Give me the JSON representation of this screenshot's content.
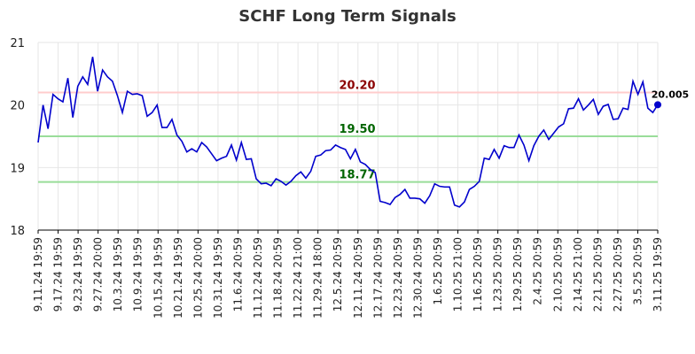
{
  "chart_data": {
    "type": "line",
    "title": "SCHF Long Term Signals",
    "xlabel": "",
    "ylabel": "",
    "ylim": [
      18,
      21
    ],
    "yticks": [
      "18",
      "19",
      "20",
      "21"
    ],
    "grid": true,
    "x_tick_labels": [
      "9.11.24 19:59",
      "9.17.24 19:59",
      "9.23.24 19:59",
      "9.27.24 20:00",
      "10.3.24 19:59",
      "10.9.24 19:59",
      "10.15.24 19:59",
      "10.21.24 19:59",
      "10.25.24 20:00",
      "10.31.24 19:59",
      "11.6.24 20:59",
      "11.12.24 20:59",
      "11.18.24 20:59",
      "11.22.24 21:00",
      "11.29.24 18:00",
      "12.5.24 20:59",
      "12.11.24 20:59",
      "12.17.24 20:59",
      "12.23.24 20:59",
      "12.30.24 20:59",
      "1.6.25 20:59",
      "1.10.25 21:00",
      "1.16.25 20:59",
      "1.23.25 20:59",
      "1.29.25 20:59",
      "2.4.25 20:59",
      "2.10.25 20:59",
      "2.14.25 21:00",
      "2.21.25 20:59",
      "2.27.25 20:59",
      "3.5.25 20:59",
      "3.11.25 19:59"
    ],
    "series": [
      {
        "color": "#0000cc",
        "values": [
          19.4,
          20.0,
          19.62,
          20.17,
          20.1,
          20.05,
          20.43,
          19.8,
          20.3,
          20.45,
          20.33,
          20.77,
          20.22,
          20.56,
          20.45,
          20.38,
          20.15,
          19.88,
          20.22,
          20.17,
          20.18,
          20.15,
          19.82,
          19.88,
          20.0,
          19.64,
          19.64,
          19.77,
          19.52,
          19.42,
          19.25,
          19.3,
          19.25,
          19.4,
          19.33,
          19.22,
          19.11,
          19.15,
          19.18,
          19.36,
          19.12,
          19.4,
          19.13,
          19.14,
          18.82,
          18.74,
          18.75,
          18.71,
          18.82,
          18.78,
          18.72,
          18.78,
          18.87,
          18.93,
          18.83,
          18.94,
          19.18,
          19.2,
          19.27,
          19.28,
          19.36,
          19.32,
          19.29,
          19.14,
          19.29,
          19.09,
          19.05,
          18.97,
          18.92,
          18.46,
          18.44,
          18.41,
          18.52,
          18.57,
          18.65,
          18.51,
          18.51,
          18.5,
          18.43,
          18.55,
          18.74,
          18.7,
          18.69,
          18.69,
          18.4,
          18.37,
          18.45,
          18.65,
          18.7,
          18.78,
          19.15,
          19.13,
          19.29,
          19.15,
          19.35,
          19.32,
          19.32,
          19.52,
          19.36,
          19.11,
          19.35,
          19.5,
          19.6,
          19.45,
          19.55,
          19.65,
          19.7,
          19.94,
          19.95,
          20.1,
          19.92,
          20.0,
          20.09,
          19.85,
          19.98,
          20.01,
          19.77,
          19.78,
          19.95,
          19.93,
          20.38,
          20.17,
          20.37,
          19.95,
          19.88,
          20.005
        ]
      }
    ],
    "reference_lines": [
      {
        "value": 20.2,
        "label": "20.20",
        "line_color": "#ffcccc",
        "text_color": "#8b0000"
      },
      {
        "value": 19.5,
        "label": "19.50",
        "line_color": "#99dd99",
        "text_color": "#006400"
      },
      {
        "value": 18.77,
        "label": "18.77",
        "line_color": "#99dd99",
        "text_color": "#006400"
      }
    ],
    "last_value_label": "20.005"
  }
}
